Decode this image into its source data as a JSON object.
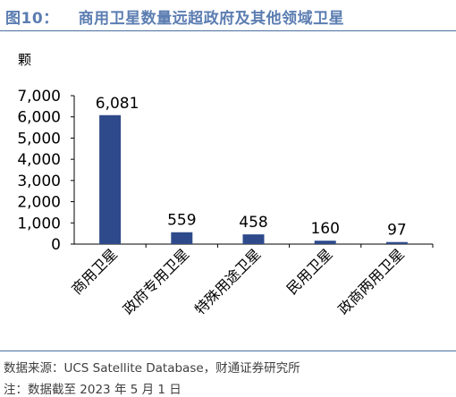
{
  "figure": {
    "number": "图10：",
    "title": "商用卫星数量远超政府及其他领域卫星",
    "source": "数据来源：UCS Satellite Database，财通证券研究所",
    "note": "注：数据截至 2023 年 5 月 1 日"
  },
  "colors": {
    "bar": "#2e4a8a",
    "title": "#5b7db1",
    "rule": "#4a6f9f"
  },
  "chart_data": {
    "type": "bar",
    "unit": "颗",
    "categories": [
      "商用卫星",
      "政府专用卫星",
      "特殊用途卫星",
      "民用卫星",
      "政商两用卫星"
    ],
    "values": [
      6081,
      559,
      458,
      160,
      97
    ],
    "data_labels": [
      "6,081",
      "559",
      "458",
      "160",
      "97"
    ],
    "yticks": [
      "0",
      "1,000",
      "2,000",
      "3,000",
      "4,000",
      "5,000",
      "6,000",
      "7,000"
    ],
    "ylim": [
      0,
      7000
    ],
    "grid": false,
    "legend": "none"
  }
}
